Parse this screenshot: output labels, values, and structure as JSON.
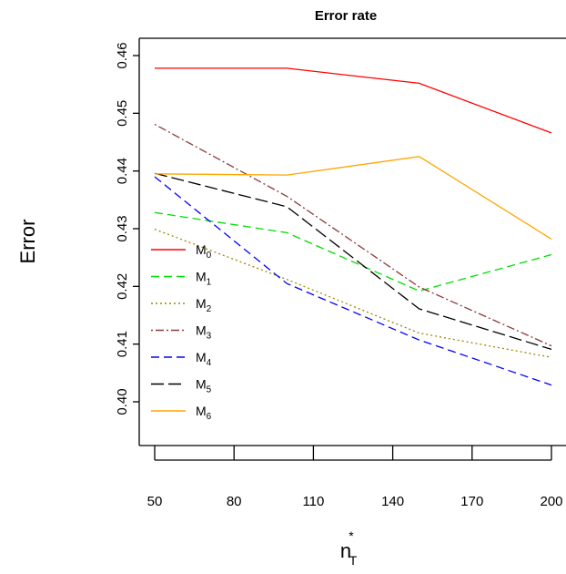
{
  "chart_data": {
    "type": "line",
    "title": "Error rate",
    "ylabel": "Error",
    "xlabel": {
      "base": "n",
      "sup": "*",
      "sub": "T"
    },
    "x": [
      50,
      100,
      150,
      200
    ],
    "xticks": [
      50,
      80,
      110,
      140,
      170,
      200
    ],
    "xtick_labels": [
      "50",
      "80",
      "110",
      "140",
      "170",
      "200"
    ],
    "yticks": [
      0.4,
      0.41,
      0.42,
      0.43,
      0.44,
      0.45,
      0.46
    ],
    "ytick_labels": [
      "0.40",
      "0.41",
      "0.42",
      "0.43",
      "0.44",
      "0.45",
      "0.46"
    ],
    "xlim": [
      46,
      201
    ],
    "ylim": [
      0.389,
      0.4605
    ],
    "grid": false,
    "legend_position": "left",
    "series": [
      {
        "name": "M",
        "sub": "0",
        "color": "#ff0000",
        "dash": "solid",
        "values": [
          0.4578,
          0.4578,
          0.4552,
          0.4466
        ]
      },
      {
        "name": "M",
        "sub": "1",
        "color": "#00dd00",
        "dash": "dashed",
        "values": [
          0.4328,
          0.4293,
          0.4192,
          0.4255
        ]
      },
      {
        "name": "M",
        "sub": "2",
        "color": "#9a8a00",
        "dash": "dotted",
        "values": [
          0.4299,
          0.4212,
          0.4119,
          0.4077
        ]
      },
      {
        "name": "M",
        "sub": "3",
        "color": "#8b3a3a",
        "dash": "dotdash",
        "values": [
          0.4481,
          0.4356,
          0.4199,
          0.4097
        ]
      },
      {
        "name": "M",
        "sub": "4",
        "color": "#0000ff",
        "dash": "dashed",
        "values": [
          0.439,
          0.4205,
          0.4107,
          0.4029
        ]
      },
      {
        "name": "M",
        "sub": "5",
        "color": "#000000",
        "dash": "longdash",
        "values": [
          0.4396,
          0.4338,
          0.4161,
          0.4091
        ]
      },
      {
        "name": "M",
        "sub": "6",
        "color": "#ffa500",
        "dash": "solid",
        "values": [
          0.4395,
          0.4393,
          0.4425,
          0.4282
        ]
      }
    ]
  }
}
